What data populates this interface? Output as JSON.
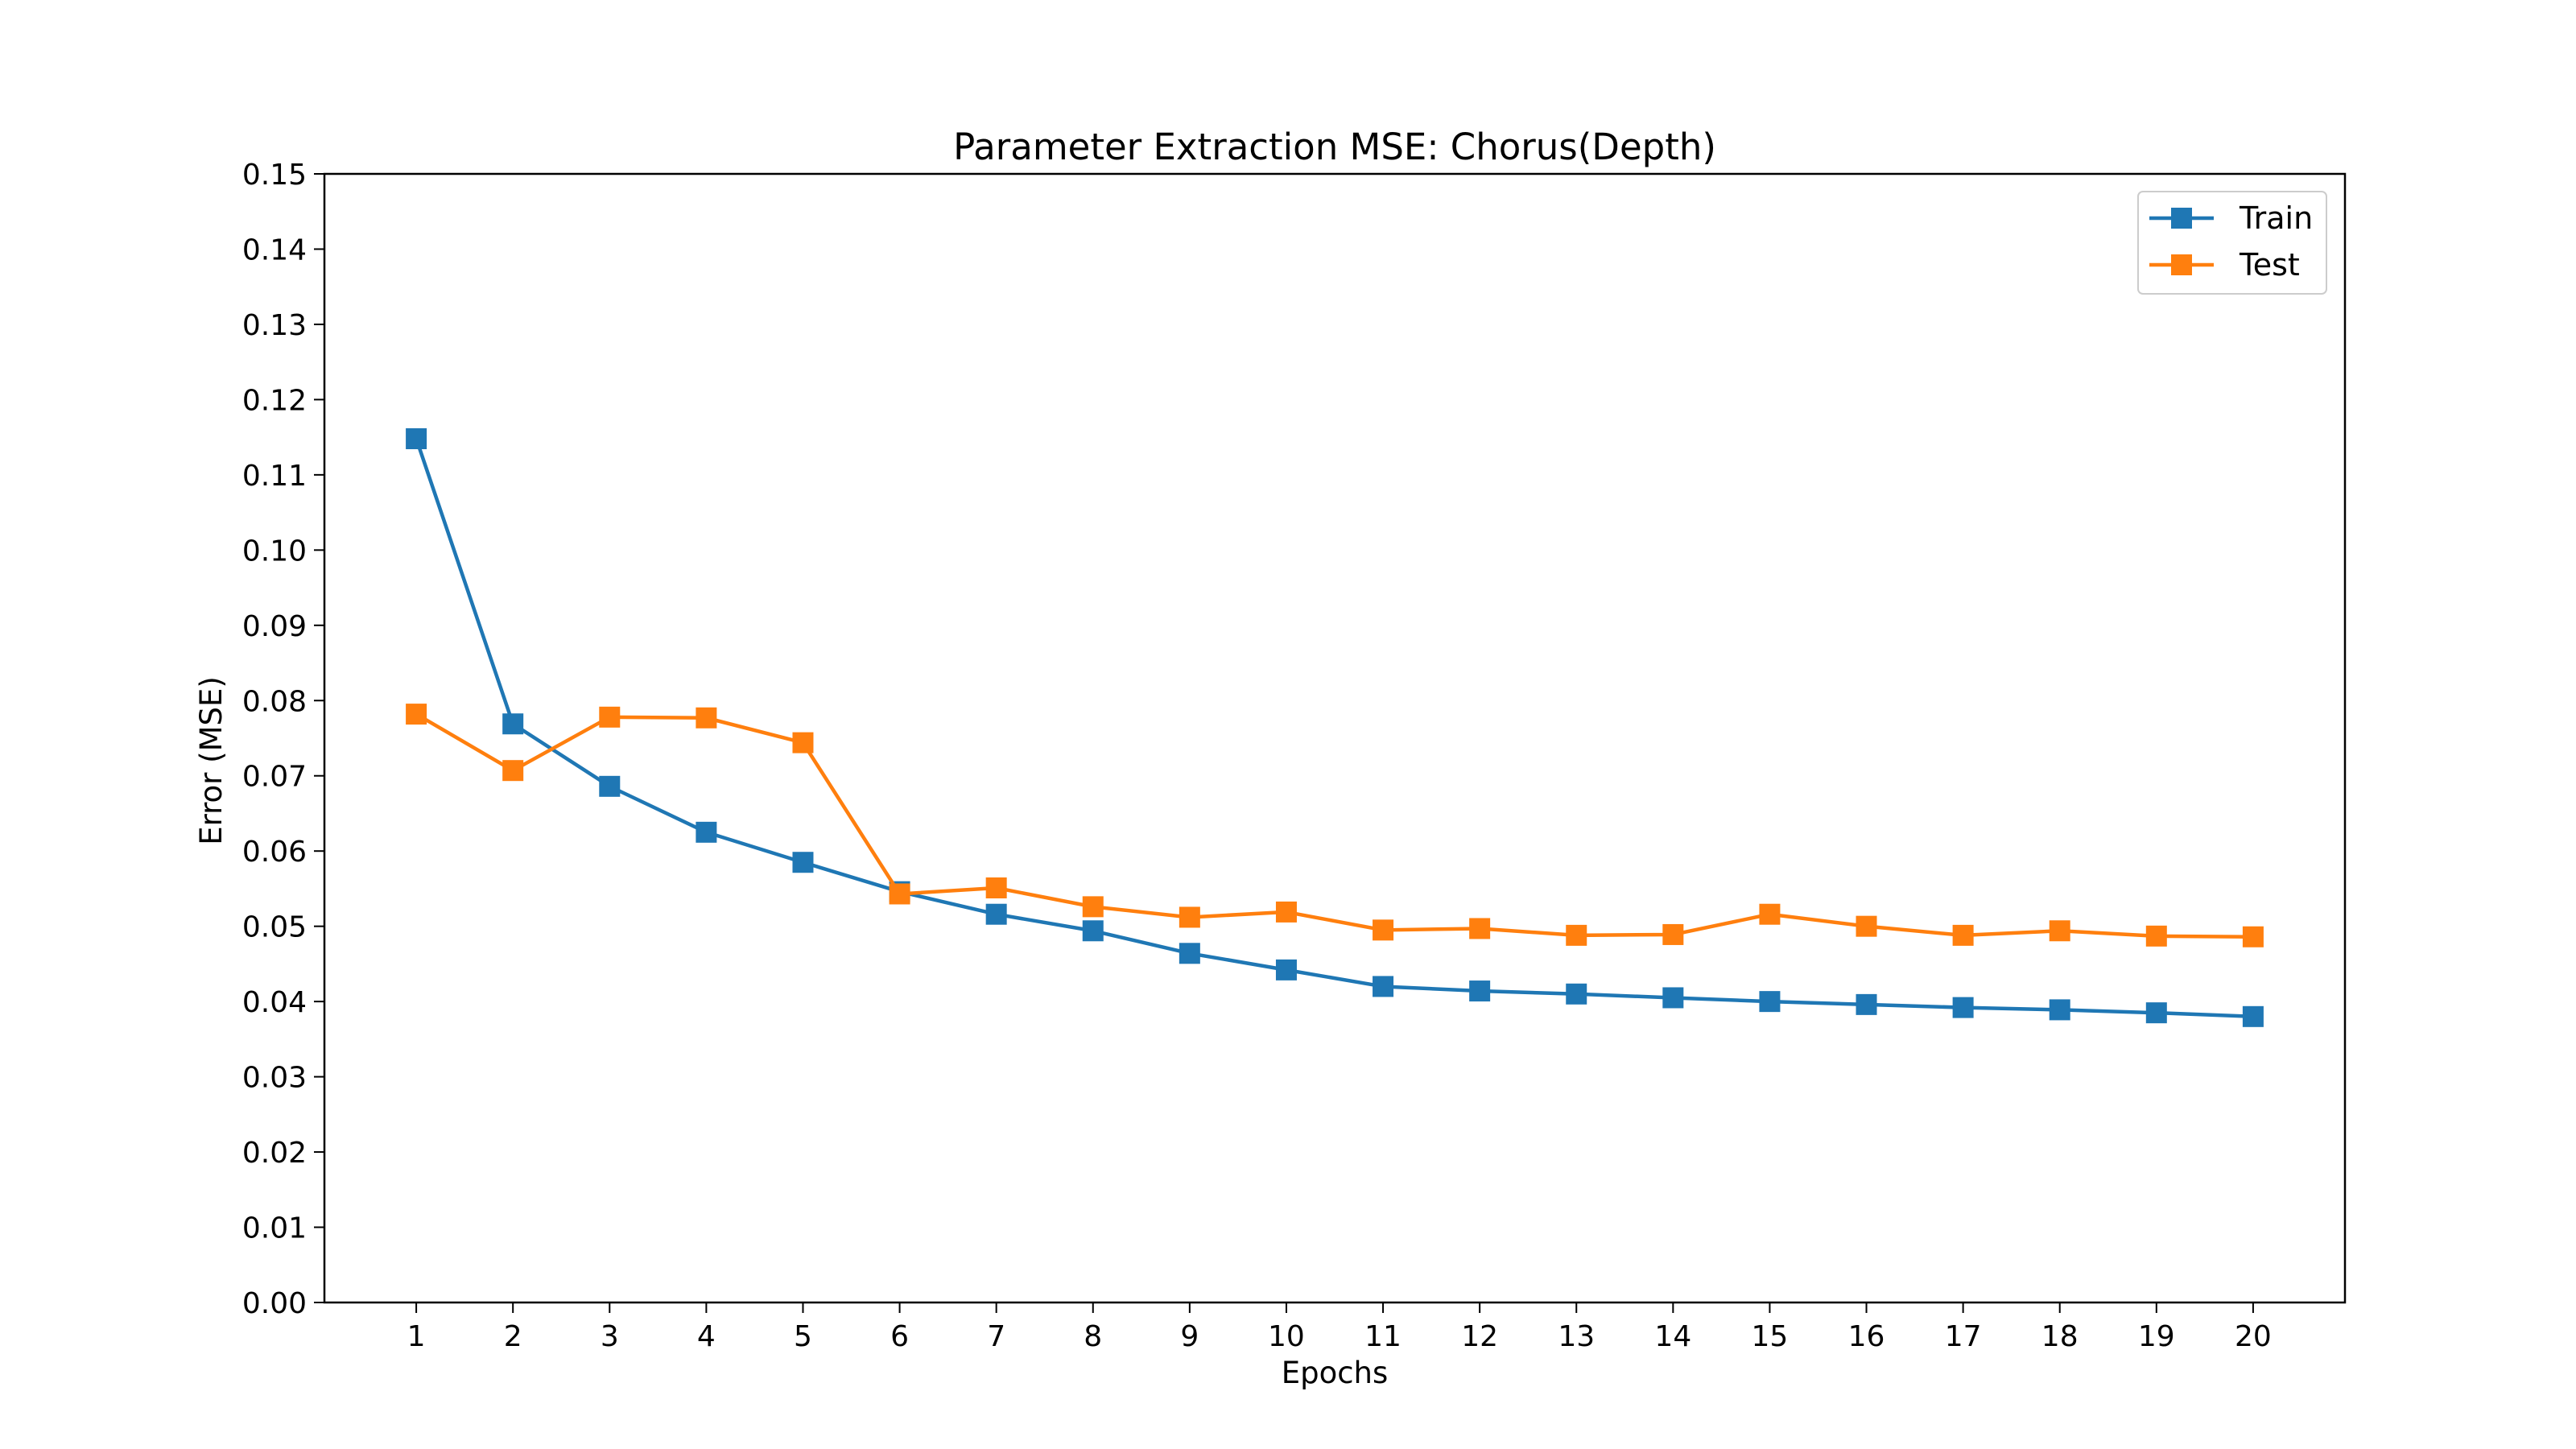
{
  "chart_data": {
    "type": "line",
    "title": "Parameter Extraction MSE: Chorus(Depth)",
    "xlabel": "Epochs",
    "ylabel": "Error (MSE)",
    "x": [
      1,
      2,
      3,
      4,
      5,
      6,
      7,
      8,
      9,
      10,
      11,
      12,
      13,
      14,
      15,
      16,
      17,
      18,
      19,
      20
    ],
    "xlim": [
      0.05,
      20.95
    ],
    "ylim": [
      0,
      0.15
    ],
    "yticks": [
      "0.00",
      "0.01",
      "0.02",
      "0.03",
      "0.04",
      "0.05",
      "0.06",
      "0.07",
      "0.08",
      "0.09",
      "0.10",
      "0.11",
      "0.12",
      "0.13",
      "0.14",
      "0.15"
    ],
    "grid": false,
    "legend_position": "top-right",
    "marker": "square",
    "series": [
      {
        "name": "Train",
        "color": "#1f77b4",
        "values": [
          0.1148,
          0.0769,
          0.0686,
          0.0625,
          0.0585,
          0.0546,
          0.0516,
          0.0494,
          0.0464,
          0.0442,
          0.042,
          0.0414,
          0.041,
          0.0405,
          0.04,
          0.0396,
          0.0392,
          0.0389,
          0.0385,
          0.038
        ]
      },
      {
        "name": "Test",
        "color": "#ff7f0e",
        "values": [
          0.0782,
          0.0707,
          0.0778,
          0.0777,
          0.0744,
          0.0543,
          0.0551,
          0.0526,
          0.0512,
          0.0519,
          0.0495,
          0.0497,
          0.0488,
          0.0489,
          0.0516,
          0.05,
          0.0488,
          0.0494,
          0.0487,
          0.0486
        ]
      }
    ]
  }
}
